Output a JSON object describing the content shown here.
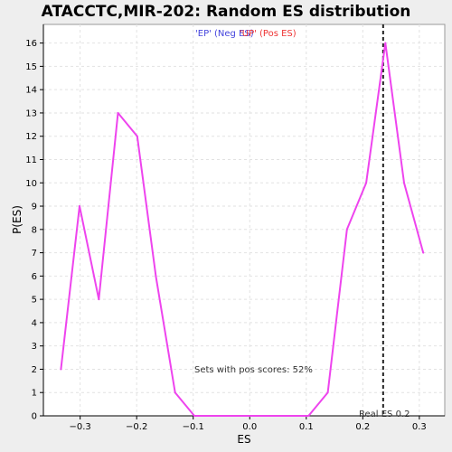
{
  "chart_data": {
    "type": "line",
    "title": "ATACCTC,MIR-202: Random ES distribution",
    "xlabel": "ES",
    "ylabel": "P(ES)",
    "xlim": [
      -0.365,
      0.345
    ],
    "ylim": [
      0,
      16.8
    ],
    "xticks": [
      -0.3,
      -0.2,
      -0.1,
      0.0,
      0.1,
      0.2,
      0.3
    ],
    "xtick_labels": [
      "−0.3",
      "−0.2",
      "−0.1",
      "0.0",
      "0.1",
      "0.2",
      "0.3"
    ],
    "yticks": [
      0,
      1,
      2,
      3,
      4,
      5,
      6,
      7,
      8,
      9,
      10,
      11,
      12,
      13,
      14,
      15,
      16
    ],
    "ytick_labels": [
      "0",
      "1",
      "2",
      "3",
      "4",
      "5",
      "6",
      "7",
      "8",
      "9",
      "10",
      "11",
      "12",
      "13",
      "14",
      "15",
      "16"
    ],
    "grid": true,
    "series": [
      {
        "color": "#ee44ee",
        "x": [
          -0.334,
          -0.301,
          -0.267,
          -0.233,
          -0.199,
          -0.166,
          -0.132,
          -0.098,
          -0.064,
          -0.031,
          0.003,
          0.037,
          0.071,
          0.104,
          0.138,
          0.172,
          0.206,
          0.24,
          0.273,
          0.307
        ],
        "y": [
          2,
          9,
          5,
          13,
          12,
          6,
          1,
          0,
          0,
          0,
          0,
          0,
          0,
          0,
          1,
          8,
          10,
          16,
          10,
          7
        ]
      }
    ],
    "legend": [
      {
        "label": "'EP' (Neg ES)",
        "color": "#4444dd"
      },
      {
        "label": "'UP' (Pos ES)",
        "color": "#ee3333"
      }
    ],
    "reference_line": {
      "x": 0.236,
      "label": "Real ES 0.2"
    },
    "annotation": "Sets with pos scores: 52%"
  }
}
